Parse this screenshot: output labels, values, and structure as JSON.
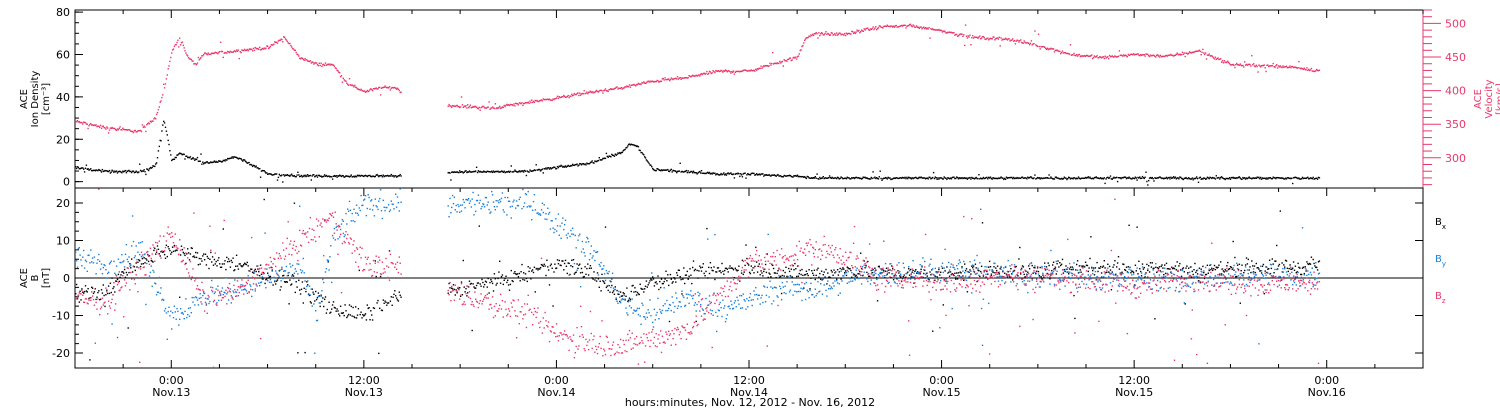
{
  "figure": {
    "xaxis_title": "hours:minutes, Nov. 12, 2012 - Nov. 16, 2012"
  },
  "chart_data": [
    {
      "type": "scatter",
      "panel": "top",
      "left_axis": {
        "label_lines": [
          "ACE",
          "Ion Density",
          "[cm⁻³]"
        ],
        "ylim": [
          -3,
          81
        ],
        "ticks": [
          0,
          20,
          40,
          60,
          80
        ],
        "color": "#000000"
      },
      "right_axis": {
        "label_lines": [
          "ACE",
          "Velocity",
          "[km/s]"
        ],
        "ylim": [
          255,
          520
        ],
        "ticks": [
          300,
          350,
          400,
          450,
          500
        ],
        "color": "#e8386b"
      },
      "xlim": [
        -6,
        78
      ],
      "series": [
        {
          "axis": "right",
          "color": "#e8386b",
          "spread": 4,
          "x": [
            -6,
            -4,
            -2,
            -1,
            -0.5,
            0,
            0.5,
            1,
            1.5,
            2,
            4,
            6,
            7,
            8,
            9,
            10,
            11,
            12,
            13,
            14,
            15,
            16,
            18,
            20,
            22,
            24,
            26,
            28,
            30,
            32,
            34,
            36,
            38,
            39,
            39.5,
            40,
            42,
            44,
            46,
            48,
            50,
            52,
            54,
            56,
            58,
            60,
            62,
            64,
            66,
            68,
            70,
            71.5
          ],
          "y": [
            355,
            345,
            340,
            362,
            400,
            460,
            480,
            450,
            440,
            455,
            460,
            465,
            480,
            450,
            440,
            440,
            410,
            400,
            405,
            405,
            382,
            380,
            378,
            375,
            383,
            390,
            398,
            405,
            415,
            420,
            430,
            430,
            445,
            450,
            480,
            485,
            485,
            495,
            498,
            490,
            480,
            478,
            468,
            455,
            450,
            455,
            452,
            460,
            440,
            438,
            436,
            430
          ]
        },
        {
          "axis": "left",
          "color": "#000000",
          "spread": 1,
          "x": [
            -6,
            -4,
            -2,
            -1.5,
            -1,
            -0.5,
            0,
            0.5,
            1,
            2,
            3,
            4,
            5,
            6,
            8,
            10,
            12,
            14,
            15,
            16,
            18,
            20,
            22,
            24,
            26,
            28,
            28.5,
            29,
            30,
            32,
            34,
            36,
            38,
            39,
            40,
            44,
            48,
            52,
            56,
            60,
            64,
            68,
            71.5
          ],
          "y": [
            7,
            5,
            5,
            6,
            8,
            30,
            10,
            14,
            12,
            9,
            10,
            12,
            8,
            4,
            3,
            3,
            3,
            3,
            4,
            4,
            5,
            5,
            5,
            7,
            9,
            14,
            18,
            17,
            6,
            5,
            4,
            4,
            3,
            3,
            2,
            2,
            2,
            2,
            2,
            2,
            2,
            2,
            2
          ]
        }
      ]
    },
    {
      "type": "scatter",
      "panel": "bottom",
      "left_axis": {
        "label_lines": [
          "ACE",
          "B",
          "[nT]"
        ],
        "ylim": [
          -24,
          24
        ],
        "ticks": [
          -20,
          -10,
          0,
          10,
          20
        ],
        "color": "#000000"
      },
      "xlim": [
        -6,
        78
      ],
      "legend": [
        {
          "label": "B",
          "sub": "x",
          "color": "#000000"
        },
        {
          "label": "B",
          "sub": "y",
          "color": "#1a7fd8"
        },
        {
          "label": "B",
          "sub": "z",
          "color": "#e8386b"
        }
      ],
      "series": [
        {
          "name": "Bx",
          "color": "#000000",
          "spread": 4,
          "x": [
            -6,
            -4,
            -2,
            0,
            2,
            4,
            6,
            8,
            10,
            12,
            14,
            15,
            16,
            18,
            20,
            22,
            24,
            26,
            28,
            30,
            32,
            34,
            36,
            38,
            40,
            42,
            44,
            46,
            48,
            50,
            52,
            54,
            56,
            58,
            60,
            62,
            64,
            66,
            68,
            70,
            71.5
          ],
          "y": [
            -4,
            -3,
            5,
            8,
            5,
            4,
            1,
            -2,
            -8,
            -10,
            -5,
            -6,
            -4,
            -3,
            -1,
            1,
            4,
            2,
            -5,
            -1,
            1,
            2,
            3,
            2,
            1,
            2,
            2,
            1,
            1,
            2,
            2,
            2,
            3,
            3,
            3,
            3,
            2,
            3,
            3,
            3,
            4
          ]
        },
        {
          "name": "By",
          "color": "#1a7fd8",
          "spread": 6,
          "x": [
            -6,
            -4,
            -2,
            0,
            2,
            4,
            6,
            8,
            9,
            10,
            11,
            12,
            13,
            14,
            15,
            16,
            18,
            20,
            21,
            22,
            24,
            26,
            27,
            28,
            30,
            32,
            34,
            36,
            38,
            40,
            42,
            44,
            46,
            48,
            50,
            52,
            54,
            56,
            58,
            60,
            62,
            64,
            66,
            68,
            70,
            71.5
          ],
          "y": [
            5,
            3,
            8,
            -10,
            -5,
            -3,
            0,
            3,
            -10,
            10,
            16,
            20,
            20,
            20,
            19,
            20,
            20,
            20,
            20,
            21,
            15,
            8,
            2,
            -6,
            -10,
            -5,
            -8,
            -6,
            -2,
            -3,
            0,
            1,
            2,
            2,
            2,
            1,
            1,
            1,
            0,
            1,
            0,
            0,
            1,
            1,
            0,
            1
          ]
        },
        {
          "name": "Bz",
          "color": "#e8386b",
          "spread": 6,
          "x": [
            -6,
            -4,
            -2,
            0,
            2,
            4,
            6,
            8,
            10,
            11,
            12,
            13,
            14,
            15,
            16,
            18,
            20,
            22,
            24,
            26,
            28,
            30,
            32,
            34,
            36,
            38,
            40,
            42,
            44,
            46,
            48,
            50,
            52,
            54,
            56,
            58,
            60,
            62,
            64,
            66,
            68,
            70,
            71.5
          ],
          "y": [
            -5,
            -6,
            3,
            12,
            -6,
            -4,
            3,
            10,
            16,
            10,
            4,
            3,
            4,
            -3,
            -2,
            -4,
            -7,
            -9,
            -15,
            -17,
            -18,
            -16,
            -14,
            -5,
            4,
            5,
            8,
            6,
            0,
            0,
            -1,
            0,
            1,
            1,
            0,
            -1,
            -2,
            -1,
            0,
            -1,
            -1,
            -1,
            -1
          ]
        }
      ]
    }
  ],
  "xaxis": {
    "xlim": [
      -6,
      78
    ],
    "major_ticks": [
      {
        "x": 0,
        "time": "0:00",
        "date": "Nov.13"
      },
      {
        "x": 12,
        "time": "12:00",
        "date": "Nov.13"
      },
      {
        "x": 24,
        "time": "0:00",
        "date": "Nov.14"
      },
      {
        "x": 36,
        "time": "12:00",
        "date": "Nov.14"
      },
      {
        "x": 48,
        "time": "0:00",
        "date": "Nov.15"
      },
      {
        "x": 60,
        "time": "12:00",
        "date": "Nov.15"
      },
      {
        "x": 72,
        "time": "0:00",
        "date": "Nov.16"
      }
    ]
  }
}
